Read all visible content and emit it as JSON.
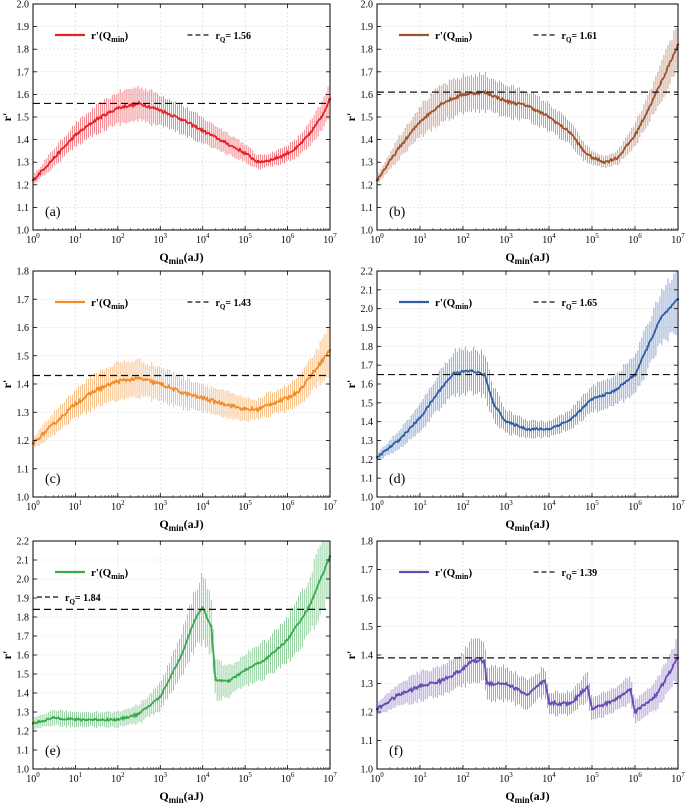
{
  "figure": {
    "xlabel_prefix": "Q",
    "xlabel_sub": "min",
    "xlabel_suffix": "(aJ)",
    "ylabel": "r'",
    "legend_series_prefix": "r'(Q",
    "legend_series_sub": "min",
    "legend_series_suffix": ")",
    "legend_ref_prefix": "r",
    "legend_ref_sub": "Q",
    "xtick_base": "10"
  },
  "chart_data": [
    {
      "type": "line",
      "panel": "(a)",
      "color": "#e8202a",
      "x_scale": "log10",
      "xlim": [
        0,
        7
      ],
      "ylim": [
        1.0,
        2.0
      ],
      "yticks": [
        1.0,
        1.1,
        1.2,
        1.3,
        1.4,
        1.5,
        1.6,
        1.7,
        1.8,
        1.9,
        2.0
      ],
      "xticks": [
        0,
        1,
        2,
        3,
        4,
        5,
        6,
        7
      ],
      "rQ": 1.56,
      "rQ_label": "= 1.56",
      "legend_y": "top",
      "series_x": [
        0,
        0.5,
        1,
        1.5,
        2,
        2.5,
        3,
        3.5,
        4,
        4.5,
        5,
        5.3,
        5.6,
        5.9,
        6.2,
        6.5,
        6.8,
        7
      ],
      "series_y": [
        1.22,
        1.32,
        1.42,
        1.49,
        1.54,
        1.56,
        1.53,
        1.49,
        1.44,
        1.39,
        1.34,
        1.3,
        1.31,
        1.33,
        1.36,
        1.42,
        1.5,
        1.58
      ],
      "error": [
        0.02,
        0.04,
        0.05,
        0.06,
        0.07,
        0.075,
        0.07,
        0.065,
        0.055,
        0.05,
        0.04,
        0.03,
        0.03,
        0.035,
        0.04,
        0.05,
        0.06,
        0.07
      ]
    },
    {
      "type": "line",
      "panel": "(b)",
      "color": "#a0522d",
      "x_scale": "log10",
      "xlim": [
        0,
        7
      ],
      "ylim": [
        1.0,
        2.0
      ],
      "yticks": [
        1.0,
        1.1,
        1.2,
        1.3,
        1.4,
        1.5,
        1.6,
        1.7,
        1.8,
        1.9,
        2.0
      ],
      "xticks": [
        0,
        1,
        2,
        3,
        4,
        5,
        6,
        7
      ],
      "rQ": 1.61,
      "rQ_label": "= 1.61",
      "legend_y": "top",
      "series_x": [
        0,
        0.5,
        1,
        1.5,
        2,
        2.5,
        3,
        3.5,
        4,
        4.5,
        4.8,
        5,
        5.3,
        5.6,
        6,
        6.3,
        6.6,
        7
      ],
      "series_y": [
        1.22,
        1.36,
        1.48,
        1.56,
        1.6,
        1.61,
        1.57,
        1.55,
        1.5,
        1.43,
        1.35,
        1.32,
        1.3,
        1.32,
        1.42,
        1.53,
        1.65,
        1.82
      ],
      "error": [
        0.02,
        0.05,
        0.07,
        0.08,
        0.08,
        0.08,
        0.07,
        0.065,
        0.06,
        0.05,
        0.04,
        0.03,
        0.025,
        0.03,
        0.05,
        0.06,
        0.08,
        0.1
      ]
    },
    {
      "type": "line",
      "panel": "(c)",
      "color": "#f28c28",
      "x_scale": "log10",
      "xlim": [
        0,
        7
      ],
      "ylim": [
        1.0,
        1.8
      ],
      "yticks": [
        1.0,
        1.1,
        1.2,
        1.3,
        1.4,
        1.5,
        1.6,
        1.7,
        1.8
      ],
      "xticks": [
        0,
        1,
        2,
        3,
        4,
        5,
        6,
        7
      ],
      "rQ": 1.43,
      "rQ_label": "= 1.43",
      "legend_y": "top",
      "series_x": [
        0,
        0.5,
        1,
        1.5,
        2,
        2.5,
        3,
        3.5,
        4,
        4.5,
        5,
        5.3,
        5.6,
        6,
        6.3,
        6.6,
        6.8,
        7
      ],
      "series_y": [
        1.19,
        1.26,
        1.33,
        1.38,
        1.41,
        1.42,
        1.4,
        1.37,
        1.35,
        1.33,
        1.31,
        1.31,
        1.33,
        1.35,
        1.38,
        1.44,
        1.48,
        1.52
      ],
      "error": [
        0.02,
        0.04,
        0.05,
        0.06,
        0.065,
        0.065,
        0.06,
        0.055,
        0.05,
        0.045,
        0.04,
        0.035,
        0.04,
        0.045,
        0.05,
        0.06,
        0.07,
        0.08
      ]
    },
    {
      "type": "line",
      "panel": "(d)",
      "color": "#2f5da8",
      "x_scale": "log10",
      "xlim": [
        0,
        7
      ],
      "ylim": [
        1.0,
        2.2
      ],
      "yticks": [
        1.0,
        1.1,
        1.2,
        1.3,
        1.4,
        1.5,
        1.6,
        1.7,
        1.8,
        1.9,
        2.0,
        2.1,
        2.2
      ],
      "xticks": [
        0,
        1,
        2,
        3,
        4,
        5,
        6,
        7
      ],
      "rQ": 1.65,
      "rQ_label": "= 1.65",
      "legend_y": "top",
      "series_x": [
        0,
        0.5,
        1,
        1.5,
        1.8,
        2.2,
        2.5,
        2.7,
        3,
        3.5,
        4,
        4.5,
        5,
        5.5,
        6,
        6.3,
        6.6,
        7
      ],
      "series_y": [
        1.21,
        1.3,
        1.42,
        1.58,
        1.66,
        1.67,
        1.65,
        1.5,
        1.4,
        1.36,
        1.36,
        1.41,
        1.52,
        1.56,
        1.65,
        1.8,
        1.95,
        2.05
      ],
      "error": [
        0.02,
        0.05,
        0.07,
        0.1,
        0.12,
        0.12,
        0.11,
        0.09,
        0.06,
        0.05,
        0.04,
        0.05,
        0.07,
        0.08,
        0.1,
        0.12,
        0.14,
        0.16
      ]
    },
    {
      "type": "line",
      "panel": "(e)",
      "color": "#3aaa50",
      "x_scale": "log10",
      "xlim": [
        0,
        7
      ],
      "ylim": [
        1.0,
        2.2
      ],
      "yticks": [
        1.0,
        1.1,
        1.2,
        1.3,
        1.4,
        1.5,
        1.6,
        1.7,
        1.8,
        1.9,
        2.0,
        2.1,
        2.2
      ],
      "xticks": [
        0,
        1,
        2,
        3,
        4,
        5,
        6,
        7
      ],
      "rQ": 1.84,
      "rQ_label": "= 1.84",
      "legend_y": "lower",
      "series_x": [
        0,
        0.5,
        1,
        1.5,
        2,
        2.5,
        3,
        3.5,
        3.8,
        4.0,
        4.2,
        4.3,
        4.6,
        5,
        5.5,
        6,
        6.5,
        7
      ],
      "series_y": [
        1.24,
        1.27,
        1.26,
        1.26,
        1.26,
        1.29,
        1.38,
        1.6,
        1.78,
        1.85,
        1.75,
        1.47,
        1.46,
        1.52,
        1.58,
        1.68,
        1.85,
        2.12
      ],
      "error": [
        0.03,
        0.04,
        0.04,
        0.04,
        0.04,
        0.05,
        0.07,
        0.11,
        0.15,
        0.18,
        0.15,
        0.1,
        0.08,
        0.08,
        0.1,
        0.12,
        0.15,
        0.2
      ]
    },
    {
      "type": "line",
      "panel": "(f)",
      "color": "#6a4ab5",
      "x_scale": "log10",
      "xlim": [
        0,
        7
      ],
      "ylim": [
        1.0,
        1.8
      ],
      "yticks": [
        1.0,
        1.1,
        1.2,
        1.3,
        1.4,
        1.5,
        1.6,
        1.7,
        1.8
      ],
      "xticks": [
        0,
        1,
        2,
        3,
        4,
        5,
        6,
        7
      ],
      "rQ": 1.39,
      "rQ_label": "= 1.39",
      "legend_y": "top",
      "series_x": [
        0,
        0.5,
        1,
        1.5,
        2,
        2.2,
        2.5,
        2.55,
        3,
        3.5,
        3.9,
        4,
        4.5,
        4.9,
        5,
        5.5,
        5.9,
        6,
        6.5,
        7
      ],
      "series_y": [
        1.21,
        1.26,
        1.29,
        1.31,
        1.35,
        1.38,
        1.38,
        1.3,
        1.3,
        1.26,
        1.31,
        1.23,
        1.23,
        1.29,
        1.21,
        1.24,
        1.28,
        1.2,
        1.26,
        1.39
      ],
      "error": [
        0.02,
        0.04,
        0.05,
        0.05,
        0.06,
        0.07,
        0.07,
        0.06,
        0.06,
        0.05,
        0.05,
        0.04,
        0.04,
        0.05,
        0.04,
        0.04,
        0.05,
        0.04,
        0.05,
        0.07
      ]
    }
  ]
}
